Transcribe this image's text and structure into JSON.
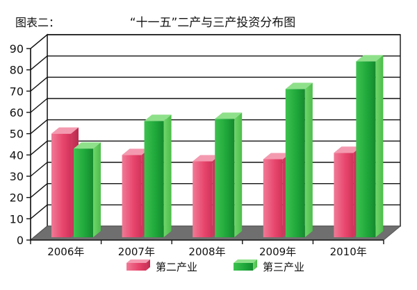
{
  "header": {
    "figure_label": "图表二：",
    "title": "“十一五”二产与三产投资分布图"
  },
  "colors": {
    "series_1": "#e8456c",
    "series_2": "#1ea63a",
    "floor": "#6f6f6f",
    "grid": "#111111"
  },
  "chart_data": {
    "type": "bar",
    "title": "“十一五”二产与三产投资分布图",
    "categories": [
      "2006年",
      "2007年",
      "2008年",
      "2009年",
      "2010年"
    ],
    "series": [
      {
        "name": "第二产业",
        "values": [
          50,
          40,
          37,
          38,
          41
        ]
      },
      {
        "name": "第三产业",
        "values": [
          43,
          56,
          57,
          71,
          84
        ]
      }
    ],
    "ylim": [
      0,
      90
    ],
    "yticks": [
      0,
      10,
      20,
      30,
      40,
      50,
      60,
      70,
      80,
      90
    ],
    "grid": true,
    "style": "3d",
    "legend_position": "bottom"
  }
}
